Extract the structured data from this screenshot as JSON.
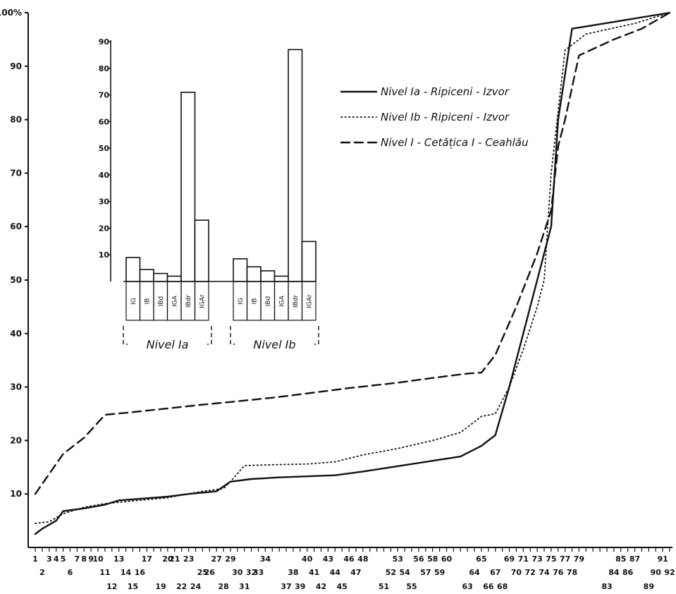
{
  "chart_data": [
    {
      "type": "line",
      "title": "",
      "xlabel": "",
      "ylabel": "",
      "ylim": [
        0,
        100
      ],
      "xlim": [
        1,
        92
      ],
      "y_ticks": [
        "10",
        "20",
        "30",
        "40",
        "50",
        "60",
        "70",
        "80",
        "90",
        "100%"
      ],
      "x_tick_row1": [
        "1",
        "3",
        "4",
        "5",
        "7",
        "8",
        "9",
        "10",
        "13",
        "17",
        "20",
        "21",
        "23",
        "27",
        "29",
        "34",
        "40",
        "43",
        "46",
        "48",
        "53",
        "56",
        "58",
        "60",
        "65",
        "69",
        "71",
        "73",
        "75",
        "77",
        "79",
        "85",
        "87",
        "91"
      ],
      "x_tick_row2": [
        "2",
        "6",
        "11",
        "14",
        "16",
        "25",
        "26",
        "30",
        "32",
        "33",
        "38",
        "41",
        "44",
        "47",
        "52",
        "54",
        "57",
        "59",
        "64",
        "67",
        "70",
        "72",
        "74",
        "76",
        "78",
        "84",
        "86",
        "90",
        "92"
      ],
      "x_tick_row3": [
        "12",
        "15",
        "19",
        "22",
        "24",
        "28",
        "31",
        "37",
        "39",
        "42",
        "45",
        "51",
        "55",
        "63",
        "66",
        "68",
        "83",
        "89"
      ],
      "series": [
        {
          "name": "Nivel Ia - Ripiceni - Izvor",
          "style": "solid",
          "points": [
            [
              1,
              2.5
            ],
            [
              2,
              3.5
            ],
            [
              4,
              5
            ],
            [
              5,
              6.8
            ],
            [
              8,
              7.3
            ],
            [
              11,
              8
            ],
            [
              13,
              8.8
            ],
            [
              17,
              9.2
            ],
            [
              20,
              9.5
            ],
            [
              23,
              10
            ],
            [
              27,
              10.5
            ],
            [
              29,
              12.3
            ],
            [
              32,
              12.8
            ],
            [
              36,
              13.1
            ],
            [
              40,
              13.3
            ],
            [
              44,
              13.5
            ],
            [
              48,
              14.2
            ],
            [
              53,
              15.2
            ],
            [
              58,
              16.2
            ],
            [
              62,
              17
            ],
            [
              65,
              19
            ],
            [
              67,
              21
            ],
            [
              69,
              30
            ],
            [
              71,
              40
            ],
            [
              73,
              50
            ],
            [
              74,
              55
            ],
            [
              75,
              60
            ],
            [
              76,
              80
            ],
            [
              78,
              97
            ],
            [
              85,
              98.5
            ],
            [
              92,
              100
            ]
          ]
        },
        {
          "name": "Nivel Ib - Ripiceni - Izvor",
          "style": "dotted",
          "points": [
            [
              1,
              4.5
            ],
            [
              3,
              4.8
            ],
            [
              5,
              6.3
            ],
            [
              8,
              7.5
            ],
            [
              11,
              8.2
            ],
            [
              15,
              8.7
            ],
            [
              20,
              9.3
            ],
            [
              25,
              10.5
            ],
            [
              28,
              11
            ],
            [
              29,
              12.3
            ],
            [
              31,
              15.3
            ],
            [
              36,
              15.5
            ],
            [
              40,
              15.6
            ],
            [
              44,
              16
            ],
            [
              48,
              17.3
            ],
            [
              53,
              18.5
            ],
            [
              58,
              20
            ],
            [
              62,
              21.5
            ],
            [
              65,
              24.5
            ],
            [
              67,
              25
            ],
            [
              69,
              30
            ],
            [
              71,
              37
            ],
            [
              73,
              45
            ],
            [
              74,
              50
            ],
            [
              75,
              70
            ],
            [
              77,
              93
            ],
            [
              80,
              96
            ],
            [
              87,
              98
            ],
            [
              92,
              100
            ]
          ]
        },
        {
          "name": "Nivel I - Cetățica I - Ceahlău",
          "style": "dashed",
          "points": [
            [
              1,
              10
            ],
            [
              5,
              17.5
            ],
            [
              8,
              20.5
            ],
            [
              11,
              24.8
            ],
            [
              15,
              25.3
            ],
            [
              20,
              26
            ],
            [
              25,
              26.7
            ],
            [
              29,
              27.2
            ],
            [
              35,
              28
            ],
            [
              40,
              28.8
            ],
            [
              46,
              29.8
            ],
            [
              53,
              30.8
            ],
            [
              58,
              31.7
            ],
            [
              63,
              32.5
            ],
            [
              65,
              32.7
            ],
            [
              67,
              36
            ],
            [
              70,
              45
            ],
            [
              73,
              55
            ],
            [
              75,
              63
            ],
            [
              76,
              75
            ],
            [
              77,
              80
            ],
            [
              79,
              92
            ],
            [
              84,
              95
            ],
            [
              88,
              97
            ],
            [
              92,
              100
            ]
          ]
        }
      ],
      "legend": {
        "placement": "top-right",
        "entries": [
          "Nivel Ia - Ripiceni - Izvor",
          "Nivel Ib - Ripiceni - Izvor",
          "Nivel I - Cetățica I - Ceahlău"
        ]
      }
    },
    {
      "type": "bar",
      "title": "",
      "ylim": [
        0,
        90
      ],
      "y_ticks": [
        "10",
        "20",
        "30",
        "40",
        "50",
        "60",
        "70",
        "80",
        "90"
      ],
      "categories": [
        "IG",
        "IB",
        "IBd",
        "IGA",
        "IBdr",
        "IGAr"
      ],
      "groups": [
        {
          "name": "Nivel Ia",
          "values": [
            9,
            4.5,
            3,
            2,
            71,
            23
          ]
        },
        {
          "name": "Nivel Ib",
          "values": [
            8.5,
            5.5,
            4,
            2,
            87,
            15
          ]
        }
      ]
    }
  ]
}
